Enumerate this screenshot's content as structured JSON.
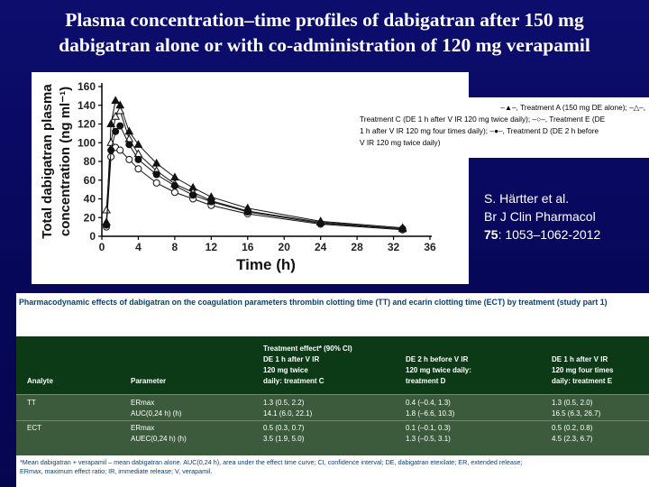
{
  "slide": {
    "title_line1": "Plasma concentration–time profiles of dabigatran after 150 mg",
    "title_line2": "dabigatran alone or  with co-administration of 120 mg verapamil"
  },
  "citation": {
    "line1": "S. Härtter et al.",
    "line2": "Br J Clin Pharmacol",
    "volume": "75",
    "pages": ": 1053–1062-2012"
  },
  "legend": {
    "line1": "–▲–, Treatment  A  (150 mg  DE  alone);  –△–,",
    "line2": "Treatment C (DE 1 h after V IR 120 mg twice daily);  –○–, Treatment E (DE",
    "line3": "1 h after V IR 120 mg four times daily); –●–, Treatment D (DE 2 h before",
    "line4": "V IR 120 mg twice daily)"
  },
  "chart_data": {
    "type": "line",
    "title": "",
    "xlabel": "Time (h)",
    "ylabel": "Total dabigatran plasma concentration (ng ml⁻¹)",
    "xlim": [
      0,
      36
    ],
    "ylim": [
      0,
      160
    ],
    "xticks": [
      0,
      4,
      8,
      12,
      16,
      20,
      24,
      28,
      32,
      36
    ],
    "yticks": [
      0,
      20,
      40,
      60,
      80,
      100,
      120,
      140,
      160
    ],
    "x": [
      0.5,
      1,
      1.5,
      2,
      3,
      4,
      6,
      8,
      10,
      12,
      16,
      24,
      33
    ],
    "series": [
      {
        "name": "Treatment A (150 mg DE alone)",
        "marker": "filled-triangle",
        "values": [
          15,
          120,
          145,
          140,
          112,
          98,
          78,
          63,
          52,
          42,
          30,
          16,
          9
        ]
      },
      {
        "name": "Treatment C (DE 1 h after V IR 120 mg twice daily)",
        "marker": "open-triangle",
        "values": [
          28,
          100,
          128,
          134,
          104,
          88,
          70,
          56,
          47,
          38,
          27,
          15,
          8
        ]
      },
      {
        "name": "Treatment E (DE 1 h after V IR 120 mg four times daily)",
        "marker": "open-circle",
        "values": [
          10,
          85,
          95,
          92,
          82,
          72,
          57,
          47,
          40,
          33,
          24,
          13,
          7
        ]
      },
      {
        "name": "Treatment D (DE 2 h before V IR 120 mg twice daily)",
        "marker": "filled-circle",
        "values": [
          12,
          92,
          112,
          118,
          98,
          82,
          66,
          54,
          44,
          37,
          26,
          14,
          8
        ]
      }
    ]
  },
  "table": {
    "caption": "Pharmacodynamic effects of dabigatran on the coagulation parameters thrombin clotting time (TT) and ecarin clotting time (ECT) by treatment (study part 1)",
    "super_header": "Treatment effect* (90% CI)",
    "col_headers": [
      "Analyte",
      "Parameter"
    ],
    "col_c": [
      "DE 1 h after V IR",
      "120 mg twice",
      "daily: treatment C"
    ],
    "col_d": [
      "DE 2 h before V IR",
      "120 mg twice daily:",
      "treatment D"
    ],
    "col_e": [
      "DE 1 h after V IR",
      "120 mg four times",
      "daily: treatment E"
    ],
    "rows": [
      {
        "analyte": "TT",
        "parameter": "ERmax",
        "c": "1.3 (0.5, 2.2)",
        "d": "0.4 (–0.4, 1.3)",
        "e": "1.3 (0.5, 2.0)"
      },
      {
        "analyte": "",
        "parameter": "AUC(0,24 h) (h)",
        "c": "14.1 (6.0, 22.1)",
        "d": "1.8 (–6.6, 10.3)",
        "e": "16.5 (6.3, 26.7)"
      },
      {
        "analyte": "ECT",
        "parameter": "ERmax",
        "c": "0.5 (0.3, 0.7)",
        "d": "0.1 (–0.1, 0.3)",
        "e": "0.5 (0.2, 0.8)"
      },
      {
        "analyte": "",
        "parameter": "AUEC(0,24 h) (h)",
        "c": "3.5 (1.9, 5.0)",
        "d": "1.3 (–0.5, 3.1)",
        "e": "4.5 (2.3, 6.7)"
      }
    ],
    "footnote1": "*Mean dabigatran + verapamil – mean dabigatran alone. AUC(0,24 h), area under the effect time curve; CI, confidence interval; DE, dabigatran etexilate; ER, extended release;",
    "footnote2": "ERmax, maximum effect ratio; IR, immediate release; V, verapamil."
  },
  "colors": {
    "background": "#07075a",
    "table_header": "#0c3a17",
    "caption": "#0a3f73"
  }
}
